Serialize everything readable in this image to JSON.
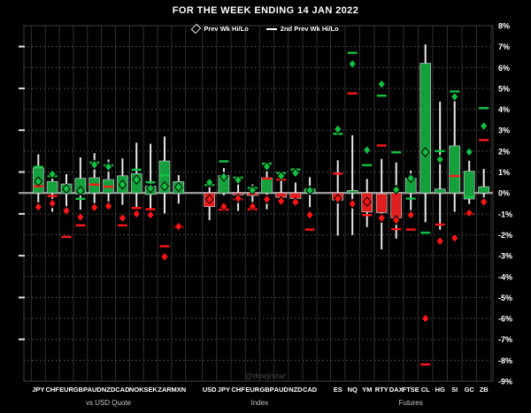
{
  "title": "FOR THE WEEK ENDING 14 JAN 2022",
  "watermark": "@doejistar",
  "legend": {
    "prev_wk_label": "Prev Wk Hi/Lo",
    "second_prev_wk_label": "2nd Prev Wk Hi/Lo"
  },
  "axis": {
    "max": 8,
    "min": -9,
    "step": 1,
    "labels": [
      "8%",
      "7%",
      "6%",
      "5%",
      "4%",
      "3%",
      "2%",
      "1%",
      "0%",
      "-1%",
      "-2%",
      "-3%",
      "-4%",
      "-5%",
      "-6%",
      "-7%",
      "-8%",
      "-9%"
    ]
  },
  "colors": {
    "background": "#000000",
    "up_body": "#14a03c",
    "down_body": "#df1f1f",
    "high_marker": "#10c244",
    "low_marker": "#ff1515",
    "wick": "#e9e9e9",
    "grid_dots": "#5a5a5a",
    "zero_line": "#979797",
    "column_line": "#303030",
    "border": "#3f3f3f",
    "label_text": "#ffffff",
    "group_text": "#c4c4c4"
  },
  "chart_data": {
    "type": "candlestick",
    "unit": "percent weekly change",
    "marker_semantics": {
      "diamond": "Prev Wk Hi/Lo (ph=high green, pl=low red)",
      "dash": "2nd Prev Wk Hi/Lo (sh=high green, sl=low red)"
    },
    "ylim": [
      -9,
      8
    ],
    "groups": [
      {
        "name": "vs USD Quote",
        "symbols": [
          {
            "sym": "JPY",
            "o": 0,
            "c": 1.2,
            "h": 1.85,
            "l": -0.5,
            "ph": 0.55,
            "pl": -0.67,
            "sh": 1.25,
            "sl": 0.32
          },
          {
            "sym": "CHF",
            "o": 0,
            "c": 0.55,
            "h": 1.1,
            "l": -0.9,
            "ph": 0.9,
            "pl": -0.5,
            "sh": 0.8,
            "sl": -0.15
          },
          {
            "sym": "EUR",
            "o": -0.03,
            "c": 0.43,
            "h": 0.9,
            "l": -0.8,
            "ph": 0.2,
            "pl": -0.85,
            "sh": 0.25,
            "sl": -2.1
          },
          {
            "sym": "GBP",
            "o": -0.05,
            "c": 0.7,
            "h": 1.7,
            "l": -0.8,
            "ph": 0.1,
            "pl": -1.15,
            "sh": -0.28,
            "sl": -1.55
          },
          {
            "sym": "AUD",
            "o": 0,
            "c": 0.73,
            "h": 1.9,
            "l": -0.67,
            "ph": 1.35,
            "pl": -0.7,
            "sh": 1.45,
            "sl": 0.4
          },
          {
            "sym": "NZD",
            "o": 0,
            "c": 0.64,
            "h": 1.6,
            "l": -0.53,
            "ph": 1.25,
            "pl": -0.63,
            "sh": 1.32,
            "sl": 0.3
          },
          {
            "sym": "CAD",
            "o": 0,
            "c": 0.82,
            "h": 1.65,
            "l": -0.57,
            "ph": 0.4,
            "pl": -1.2,
            "sh": 0.45,
            "sl": -1.55
          },
          {
            "sym": "NOK",
            "o": 0,
            "c": 0.92,
            "h": 2.4,
            "l": -0.71,
            "ph": 0.64,
            "pl": -1.0,
            "sh": 1.11,
            "sl": -0.72
          },
          {
            "sym": "SEK",
            "o": -0.07,
            "c": 0.32,
            "h": 2.35,
            "l": -0.95,
            "ph": 0.22,
            "pl": -1.05,
            "sh": 0.51,
            "sl": -0.78
          },
          {
            "sym": "ZAR",
            "o": 0,
            "c": 1.53,
            "h": 2.7,
            "l": -0.98,
            "ph": 0.32,
            "pl": -3.05,
            "sh": 0.85,
            "sl": -2.55
          },
          {
            "sym": "MXN",
            "o": -0.03,
            "c": 0.54,
            "h": 0.85,
            "l": -0.51,
            "ph": 0.28,
            "pl": -1.6,
            "sh": 0.3,
            "sl": -1.62
          }
        ]
      },
      {
        "name": "Index",
        "symbols": [
          {
            "sym": "USD",
            "o": 0,
            "c": -0.65,
            "h": 0.41,
            "l": -1.3,
            "ph": 0.5,
            "pl": -0.3,
            "sh": 0.38,
            "sl": -0.55
          },
          {
            "sym": "JPY",
            "o": 0,
            "c": 0.83,
            "h": 1.19,
            "l": -0.11,
            "ph": 0.78,
            "pl": -0.65,
            "sh": 1.51,
            "sl": -0.8
          },
          {
            "sym": "CHF",
            "o": 0,
            "c": -0.09,
            "h": 0.81,
            "l": -0.86,
            "ph": 0.62,
            "pl": -0.26,
            "sh": 0.73,
            "sl": -0.3
          },
          {
            "sym": "EUR",
            "o": 0,
            "c": -0.12,
            "h": 0.41,
            "l": -0.54,
            "ph": 0.13,
            "pl": -0.65,
            "sh": 0.24,
            "sl": -0.78
          },
          {
            "sym": "GBP",
            "o": 0,
            "c": 0.73,
            "h": 1.12,
            "l": -0.78,
            "ph": 1.26,
            "pl": -0.3,
            "sh": 1.4,
            "sl": 0.69
          },
          {
            "sym": "AUD",
            "o": 0,
            "c": -0.21,
            "h": 0.73,
            "l": -0.5,
            "ph": 0.81,
            "pl": -0.39,
            "sh": 0.95,
            "sl": 0.64
          },
          {
            "sym": "NZD",
            "o": 0,
            "c": -0.26,
            "h": 0.5,
            "l": -0.63,
            "ph": 0.95,
            "pl": -0.44,
            "sh": 1.12,
            "sl": -0.16
          },
          {
            "sym": "CAD",
            "o": 0,
            "c": 0.18,
            "h": 0.75,
            "l": -0.68,
            "ph": 0.12,
            "pl": -1.05,
            "sh": 0.17,
            "sl": -1.75
          }
        ]
      },
      {
        "name": "Futures",
        "symbols": [
          {
            "sym": "ES",
            "o": 0,
            "c": -0.34,
            "h": 1.56,
            "l": -2.04,
            "ph": 3.05,
            "pl": -0.28,
            "sh": 2.83,
            "sl": 0.92
          },
          {
            "sym": "NQ",
            "o": 0,
            "c": 0.12,
            "h": 2.76,
            "l": -2.01,
            "ph": 6.17,
            "pl": -0.52,
            "sh": 6.7,
            "sl": 4.76
          },
          {
            "sym": "YM",
            "o": 0,
            "c": -0.91,
            "h": 0.67,
            "l": -1.63,
            "ph": 2.05,
            "pl": -0.42,
            "sh": 1.33,
            "sl": -1.06
          },
          {
            "sym": "RTY",
            "o": -0.04,
            "c": -0.94,
            "h": 1.63,
            "l": -2.7,
            "ph": 5.2,
            "pl": -1.2,
            "sh": 4.65,
            "sl": 2.27
          },
          {
            "sym": "DAX",
            "o": 0,
            "c": -1.19,
            "h": 1.46,
            "l": -2.18,
            "ph": 0.15,
            "pl": -1.3,
            "sh": 1.94,
            "sl": -1.73
          },
          {
            "sym": "FTSE",
            "o": 0,
            "c": 0.71,
            "h": 1.07,
            "l": -0.87,
            "ph": 0.71,
            "pl": -1.05,
            "sh": -0.27,
            "sl": -1.75
          },
          {
            "sym": "CL",
            "o": 0,
            "c": 6.2,
            "h": 7.1,
            "l": -1.4,
            "ph": 1.95,
            "pl": -6.0,
            "sh": -1.9,
            "sl": -8.2
          },
          {
            "sym": "HG",
            "o": 0,
            "c": 0.19,
            "h": 4.37,
            "l": -1.76,
            "ph": 1.6,
            "pl": -2.3,
            "sh": 2.0,
            "sl": -1.51
          },
          {
            "sym": "SI",
            "o": 0,
            "c": 2.25,
            "h": 4.55,
            "l": -0.9,
            "ph": 4.6,
            "pl": -2.15,
            "sh": 4.85,
            "sl": 0.81
          },
          {
            "sym": "GC",
            "o": -0.29,
            "c": 1.04,
            "h": 1.54,
            "l": -0.53,
            "ph": 1.96,
            "pl": -0.96,
            "sh": -0.2,
            "sl": -1.0
          },
          {
            "sym": "ZB",
            "o": 0,
            "c": 0.3,
            "h": 1.15,
            "l": -0.65,
            "ph": 3.2,
            "pl": -0.43,
            "sh": 4.06,
            "sl": 2.53
          }
        ]
      }
    ]
  }
}
